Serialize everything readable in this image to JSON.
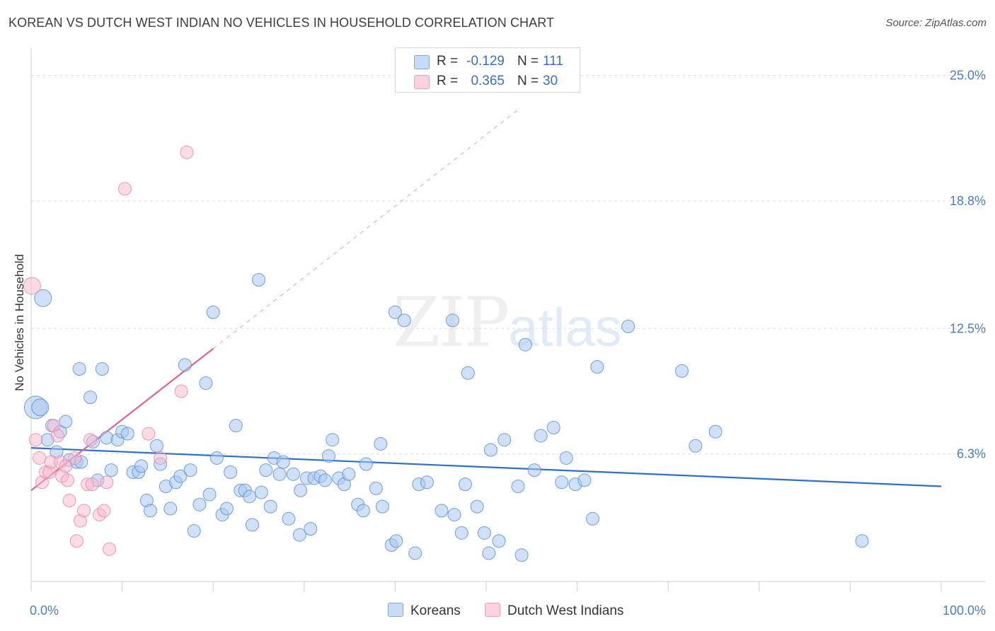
{
  "title": "KOREAN VS DUTCH WEST INDIAN NO VEHICLES IN HOUSEHOLD CORRELATION CHART",
  "source": "Source: ZipAtlas.com",
  "watermark": {
    "zip": "ZIP",
    "atlas": "atlas"
  },
  "legend": {
    "rows": [
      {
        "r_label": "R =",
        "r_value": "-0.129",
        "n_label": "N =",
        "n_value": "111",
        "color": "#a9c8f0"
      },
      {
        "r_label": "R =",
        "r_value": "0.365",
        "n_label": "N =",
        "n_value": "30",
        "color": "#f7b7cb"
      }
    ]
  },
  "bottom_legend": {
    "koreans": "Koreans",
    "dutch": "Dutch West Indians"
  },
  "colors": {
    "blue_fill": "#a9c8f0",
    "blue_stroke": "#5b8fd6",
    "blue_line": "#2f6fd1",
    "pink_fill": "#f7b7cb",
    "pink_stroke": "#e88aa8",
    "pink_line": "#e2608a",
    "grid": "#dddddd",
    "tick_text": "#4a7cc9"
  },
  "chart_data": {
    "type": "scatter",
    "title": "KOREAN VS DUTCH WEST INDIAN NO VEHICLES IN HOUSEHOLD CORRELATION CHART",
    "xlabel": "",
    "ylabel": "No Vehicles in Household",
    "xlim": [
      0,
      100
    ],
    "ylim": [
      0,
      26.0
    ],
    "x_tick_labels": [
      "0.0%",
      "100.0%"
    ],
    "y_ticks": [
      6.3,
      12.5,
      18.8,
      25.0
    ],
    "y_tick_labels": [
      "6.3%",
      "12.5%",
      "18.8%",
      "25.0%"
    ],
    "series": [
      {
        "name": "Koreans",
        "r": -0.129,
        "n": 111,
        "trend": {
          "x": [
            0,
            100
          ],
          "y": [
            6.6,
            4.7
          ],
          "dashed": false
        },
        "points": [
          {
            "x": 0.5,
            "y": 8.6,
            "s": 3
          },
          {
            "x": 1.0,
            "y": 8.6,
            "s": 2
          },
          {
            "x": 1.3,
            "y": 14.0,
            "s": 2
          },
          {
            "x": 1.8,
            "y": 7.0,
            "s": 1
          },
          {
            "x": 2.3,
            "y": 7.7,
            "s": 1
          },
          {
            "x": 2.8,
            "y": 6.4,
            "s": 1
          },
          {
            "x": 3.2,
            "y": 7.4,
            "s": 1
          },
          {
            "x": 3.8,
            "y": 7.9,
            "s": 1
          },
          {
            "x": 4.2,
            "y": 6.0,
            "s": 1
          },
          {
            "x": 5.0,
            "y": 5.9,
            "s": 1
          },
          {
            "x": 5.5,
            "y": 5.9,
            "s": 1
          },
          {
            "x": 5.3,
            "y": 10.5,
            "s": 1
          },
          {
            "x": 6.5,
            "y": 9.1,
            "s": 1
          },
          {
            "x": 6.8,
            "y": 6.9,
            "s": 1
          },
          {
            "x": 7.3,
            "y": 5.0,
            "s": 1
          },
          {
            "x": 7.8,
            "y": 10.5,
            "s": 1
          },
          {
            "x": 8.3,
            "y": 7.1,
            "s": 1
          },
          {
            "x": 8.8,
            "y": 5.5,
            "s": 1
          },
          {
            "x": 9.5,
            "y": 7.0,
            "s": 1
          },
          {
            "x": 10.0,
            "y": 7.4,
            "s": 1
          },
          {
            "x": 10.6,
            "y": 7.3,
            "s": 1
          },
          {
            "x": 11.2,
            "y": 5.4,
            "s": 1
          },
          {
            "x": 11.8,
            "y": 5.4,
            "s": 1
          },
          {
            "x": 12.1,
            "y": 5.7,
            "s": 1
          },
          {
            "x": 12.7,
            "y": 4.0,
            "s": 1
          },
          {
            "x": 13.1,
            "y": 3.5,
            "s": 1
          },
          {
            "x": 13.8,
            "y": 6.7,
            "s": 1
          },
          {
            "x": 14.2,
            "y": 5.8,
            "s": 1
          },
          {
            "x": 14.8,
            "y": 4.7,
            "s": 1
          },
          {
            "x": 15.3,
            "y": 3.6,
            "s": 1
          },
          {
            "x": 15.9,
            "y": 4.9,
            "s": 1
          },
          {
            "x": 16.4,
            "y": 5.2,
            "s": 1
          },
          {
            "x": 16.9,
            "y": 10.7,
            "s": 1
          },
          {
            "x": 17.5,
            "y": 5.5,
            "s": 1
          },
          {
            "x": 17.9,
            "y": 2.5,
            "s": 1
          },
          {
            "x": 18.5,
            "y": 3.8,
            "s": 1
          },
          {
            "x": 19.2,
            "y": 9.8,
            "s": 1
          },
          {
            "x": 19.6,
            "y": 4.3,
            "s": 1
          },
          {
            "x": 20.0,
            "y": 13.3,
            "s": 1
          },
          {
            "x": 20.4,
            "y": 6.1,
            "s": 1
          },
          {
            "x": 21.0,
            "y": 3.3,
            "s": 1
          },
          {
            "x": 21.5,
            "y": 3.6,
            "s": 1
          },
          {
            "x": 21.9,
            "y": 5.4,
            "s": 1
          },
          {
            "x": 22.5,
            "y": 7.7,
            "s": 1
          },
          {
            "x": 23.0,
            "y": 4.5,
            "s": 1
          },
          {
            "x": 23.5,
            "y": 4.5,
            "s": 1
          },
          {
            "x": 24.0,
            "y": 4.2,
            "s": 1
          },
          {
            "x": 24.3,
            "y": 2.8,
            "s": 1
          },
          {
            "x": 25.0,
            "y": 14.9,
            "s": 1
          },
          {
            "x": 25.3,
            "y": 4.4,
            "s": 1
          },
          {
            "x": 25.8,
            "y": 5.5,
            "s": 1
          },
          {
            "x": 26.3,
            "y": 3.7,
            "s": 1
          },
          {
            "x": 26.7,
            "y": 6.1,
            "s": 1
          },
          {
            "x": 27.3,
            "y": 5.3,
            "s": 1
          },
          {
            "x": 27.7,
            "y": 5.9,
            "s": 1
          },
          {
            "x": 28.3,
            "y": 3.1,
            "s": 1
          },
          {
            "x": 28.8,
            "y": 5.3,
            "s": 1
          },
          {
            "x": 29.6,
            "y": 4.5,
            "s": 1
          },
          {
            "x": 29.5,
            "y": 2.3,
            "s": 1
          },
          {
            "x": 30.3,
            "y": 5.1,
            "s": 1
          },
          {
            "x": 30.7,
            "y": 2.6,
            "s": 1
          },
          {
            "x": 31.1,
            "y": 5.1,
            "s": 1
          },
          {
            "x": 31.8,
            "y": 5.2,
            "s": 1
          },
          {
            "x": 32.3,
            "y": 5.0,
            "s": 1
          },
          {
            "x": 32.7,
            "y": 6.2,
            "s": 1
          },
          {
            "x": 33.1,
            "y": 7.0,
            "s": 1
          },
          {
            "x": 33.8,
            "y": 5.1,
            "s": 1
          },
          {
            "x": 34.4,
            "y": 4.8,
            "s": 1
          },
          {
            "x": 34.9,
            "y": 5.3,
            "s": 1
          },
          {
            "x": 35.9,
            "y": 3.8,
            "s": 1
          },
          {
            "x": 36.5,
            "y": 3.5,
            "s": 1
          },
          {
            "x": 36.8,
            "y": 5.8,
            "s": 1
          },
          {
            "x": 37.9,
            "y": 4.6,
            "s": 1
          },
          {
            "x": 38.4,
            "y": 6.8,
            "s": 1
          },
          {
            "x": 38.6,
            "y": 3.7,
            "s": 1
          },
          {
            "x": 39.6,
            "y": 1.8,
            "s": 1
          },
          {
            "x": 40.1,
            "y": 2.0,
            "s": 1
          },
          {
            "x": 40.0,
            "y": 13.3,
            "s": 1
          },
          {
            "x": 41.0,
            "y": 12.9,
            "s": 1
          },
          {
            "x": 42.2,
            "y": 1.4,
            "s": 1
          },
          {
            "x": 42.6,
            "y": 4.8,
            "s": 1
          },
          {
            "x": 43.5,
            "y": 4.9,
            "s": 1
          },
          {
            "x": 45.1,
            "y": 3.5,
            "s": 1
          },
          {
            "x": 46.5,
            "y": 3.3,
            "s": 1
          },
          {
            "x": 46.3,
            "y": 12.9,
            "s": 1
          },
          {
            "x": 47.3,
            "y": 2.4,
            "s": 1
          },
          {
            "x": 47.7,
            "y": 4.8,
            "s": 1
          },
          {
            "x": 48.0,
            "y": 10.3,
            "s": 1
          },
          {
            "x": 49.0,
            "y": 3.7,
            "s": 1
          },
          {
            "x": 49.8,
            "y": 2.4,
            "s": 1
          },
          {
            "x": 50.3,
            "y": 1.4,
            "s": 1
          },
          {
            "x": 50.5,
            "y": 6.5,
            "s": 1
          },
          {
            "x": 51.4,
            "y": 2.0,
            "s": 1
          },
          {
            "x": 52.0,
            "y": 7.0,
            "s": 1
          },
          {
            "x": 53.5,
            "y": 4.7,
            "s": 1
          },
          {
            "x": 53.9,
            "y": 1.3,
            "s": 1
          },
          {
            "x": 54.3,
            "y": 11.7,
            "s": 1
          },
          {
            "x": 55.3,
            "y": 5.5,
            "s": 1
          },
          {
            "x": 56.0,
            "y": 7.2,
            "s": 1
          },
          {
            "x": 57.4,
            "y": 7.6,
            "s": 1
          },
          {
            "x": 58.3,
            "y": 4.9,
            "s": 1
          },
          {
            "x": 58.8,
            "y": 6.1,
            "s": 1
          },
          {
            "x": 59.8,
            "y": 4.8,
            "s": 1
          },
          {
            "x": 60.8,
            "y": 5.0,
            "s": 1
          },
          {
            "x": 61.7,
            "y": 3.1,
            "s": 1
          },
          {
            "x": 62.2,
            "y": 10.6,
            "s": 1
          },
          {
            "x": 65.6,
            "y": 12.6,
            "s": 1
          },
          {
            "x": 71.5,
            "y": 10.4,
            "s": 1
          },
          {
            "x": 73.0,
            "y": 6.7,
            "s": 1
          },
          {
            "x": 75.2,
            "y": 7.4,
            "s": 1
          },
          {
            "x": 91.3,
            "y": 2.0,
            "s": 1
          }
        ]
      },
      {
        "name": "Dutch West Indians",
        "r": 0.365,
        "n": 30,
        "trend": {
          "x": [
            0,
            20
          ],
          "y": [
            4.5,
            11.5
          ],
          "dashed": false,
          "extension": {
            "x": [
              20,
              53.5
            ],
            "y": [
              11.5,
              23.3
            ]
          }
        },
        "points": [
          {
            "x": 0.1,
            "y": 14.6,
            "s": 2
          },
          {
            "x": 0.5,
            "y": 7.0,
            "s": 1
          },
          {
            "x": 0.9,
            "y": 6.1,
            "s": 1
          },
          {
            "x": 1.2,
            "y": 4.9,
            "s": 1
          },
          {
            "x": 1.6,
            "y": 5.4,
            "s": 1
          },
          {
            "x": 2.0,
            "y": 5.4,
            "s": 1
          },
          {
            "x": 2.2,
            "y": 5.9,
            "s": 1
          },
          {
            "x": 2.5,
            "y": 7.7,
            "s": 1
          },
          {
            "x": 2.9,
            "y": 7.2,
            "s": 1
          },
          {
            "x": 3.2,
            "y": 5.9,
            "s": 1
          },
          {
            "x": 3.4,
            "y": 5.2,
            "s": 1
          },
          {
            "x": 3.8,
            "y": 5.7,
            "s": 1
          },
          {
            "x": 4.0,
            "y": 5.0,
            "s": 1
          },
          {
            "x": 4.2,
            "y": 4.0,
            "s": 1
          },
          {
            "x": 4.8,
            "y": 6.1,
            "s": 1
          },
          {
            "x": 5.0,
            "y": 2.0,
            "s": 1
          },
          {
            "x": 5.4,
            "y": 3.0,
            "s": 1
          },
          {
            "x": 5.8,
            "y": 3.5,
            "s": 1
          },
          {
            "x": 6.2,
            "y": 4.8,
            "s": 1
          },
          {
            "x": 6.5,
            "y": 7.0,
            "s": 1
          },
          {
            "x": 6.7,
            "y": 4.8,
            "s": 1
          },
          {
            "x": 7.5,
            "y": 3.3,
            "s": 1
          },
          {
            "x": 8.0,
            "y": 3.5,
            "s": 1
          },
          {
            "x": 8.3,
            "y": 4.9,
            "s": 1
          },
          {
            "x": 8.6,
            "y": 1.6,
            "s": 1
          },
          {
            "x": 10.3,
            "y": 19.4,
            "s": 1
          },
          {
            "x": 12.9,
            "y": 7.3,
            "s": 1
          },
          {
            "x": 14.2,
            "y": 6.1,
            "s": 1
          },
          {
            "x": 16.5,
            "y": 9.4,
            "s": 1
          },
          {
            "x": 17.1,
            "y": 21.2,
            "s": 1
          }
        ]
      }
    ]
  }
}
